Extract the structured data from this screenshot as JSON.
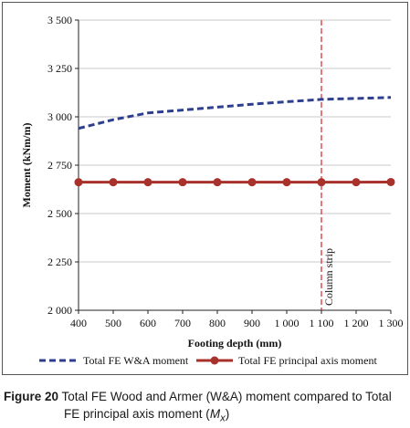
{
  "chart_data": {
    "type": "line",
    "xlabel": "Footing depth (mm)",
    "ylabel": "Moment (kNm/m)",
    "xlim": [
      400,
      1300
    ],
    "ylim": [
      2000,
      3500
    ],
    "x_ticks": [
      "400",
      "500",
      "600",
      "700",
      "800",
      "900",
      "1 000",
      "1 100",
      "1 200",
      "1 300"
    ],
    "y_ticks": [
      "2 000",
      "2 250",
      "2 500",
      "2 750",
      "3 000",
      "3 250",
      "3 500"
    ],
    "grid": "horizontal",
    "legend_position": "bottom",
    "series": [
      {
        "name": "Total FE W&A moment",
        "style": "dashed",
        "color": "#2e3f8f",
        "x": [
          400,
          500,
          600,
          700,
          800,
          900,
          1000,
          1100,
          1200,
          1300
        ],
        "values": [
          2940,
          2985,
          3020,
          3035,
          3050,
          3065,
          3078,
          3090,
          3095,
          3100
        ]
      },
      {
        "name": "Total FE principal axis moment",
        "style": "solid-markers",
        "color": "#a8312b",
        "x": [
          400,
          500,
          600,
          700,
          800,
          900,
          1000,
          1100,
          1200,
          1300
        ],
        "values": [
          2662,
          2662,
          2662,
          2662,
          2662,
          2662,
          2662,
          2662,
          2662,
          2663
        ]
      }
    ],
    "annotations": [
      {
        "type": "vline",
        "x": 1100,
        "color": "#d9323a",
        "style": "dashed",
        "label": "Column strip"
      }
    ]
  },
  "caption": {
    "label": "Figure 20",
    "text_line1": "Total FE Wood and Armer (W&A) moment compared to Total",
    "text_line2_prefix": "FE principal axis moment (",
    "symbol": "M",
    "subscript": "x",
    "text_line2_suffix": ")"
  }
}
